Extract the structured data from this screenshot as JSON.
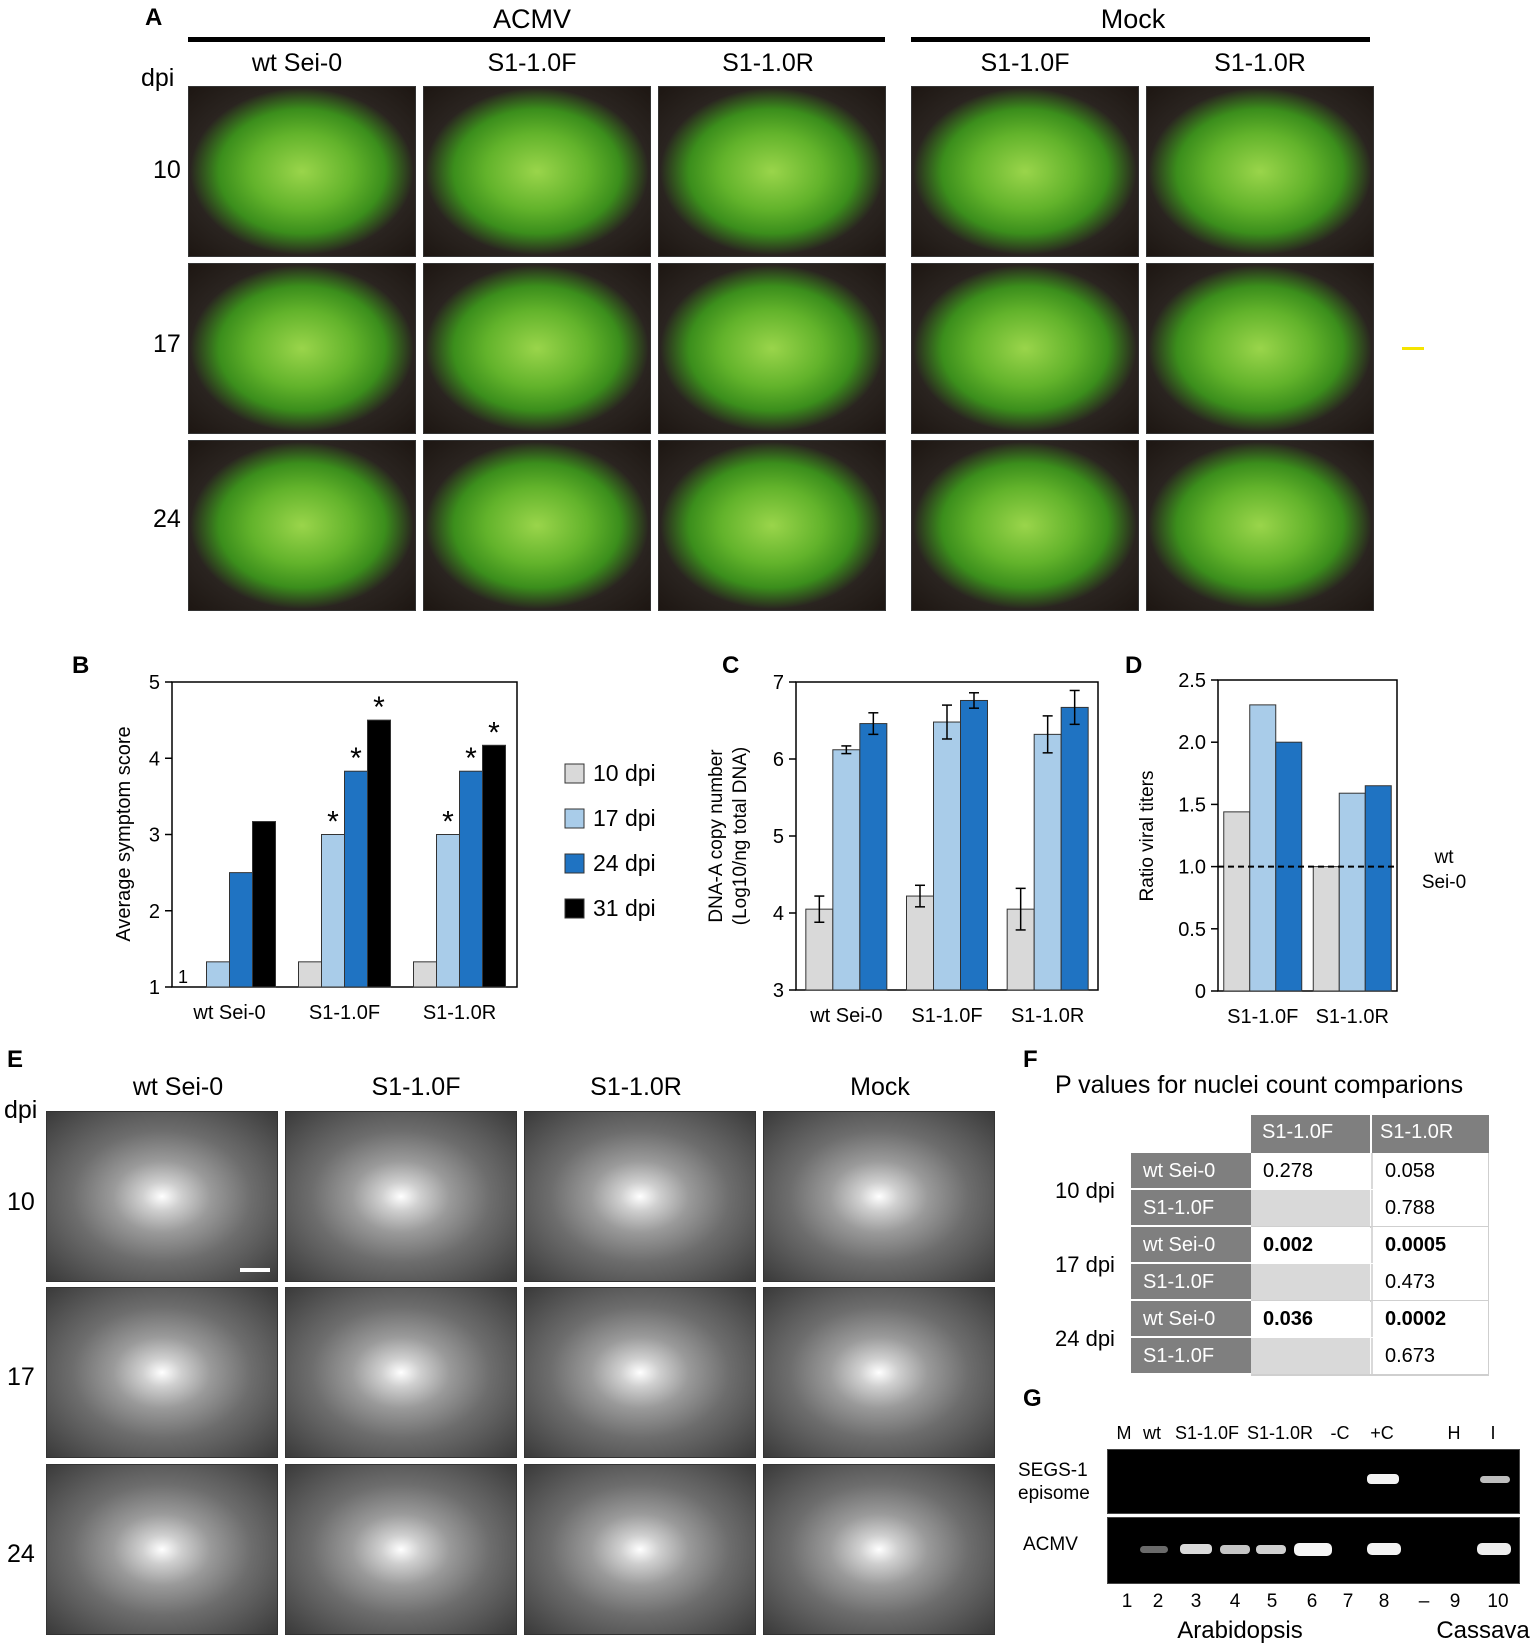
{
  "panels": {
    "A": "A",
    "B": "B",
    "C": "C",
    "D": "D",
    "E": "E",
    "F": "F",
    "G": "G"
  },
  "panel_a": {
    "group_acmv": "ACMV",
    "group_mock": "Mock",
    "columns": [
      "wt Sei-0",
      "S1-1.0F",
      "S1-1.0R",
      "S1-1.0F",
      "S1-1.0R"
    ],
    "dpi_label": "dpi",
    "rows": [
      "10",
      "17",
      "24"
    ]
  },
  "panel_e": {
    "columns": [
      "wt Sei-0",
      "S1-1.0F",
      "S1-1.0R",
      "Mock"
    ],
    "dpi_label": "dpi",
    "rows": [
      "10",
      "17",
      "24"
    ]
  },
  "panel_f": {
    "title": "P values for nuclei count comparions",
    "col_headers": [
      "S1-1.0F",
      "S1-1.0R"
    ],
    "groups": [
      {
        "dpi": "10 dpi",
        "rows": [
          {
            "label": "wt Sei-0",
            "f": "0.278",
            "r": "0.058",
            "f_bold": false,
            "r_bold": false
          },
          {
            "label": "S1-1.0F",
            "f": "",
            "r": "0.788",
            "f_bold": false,
            "r_bold": false
          }
        ]
      },
      {
        "dpi": "17 dpi",
        "rows": [
          {
            "label": "wt Sei-0",
            "f": "0.002",
            "r": "0.0005",
            "f_bold": true,
            "r_bold": true
          },
          {
            "label": "S1-1.0F",
            "f": "",
            "r": "0.473",
            "f_bold": false,
            "r_bold": false
          }
        ]
      },
      {
        "dpi": "24 dpi",
        "rows": [
          {
            "label": "wt Sei-0",
            "f": "0.036",
            "r": "0.0002",
            "f_bold": true,
            "r_bold": true
          },
          {
            "label": "S1-1.0F",
            "f": "",
            "r": "0.673",
            "f_bold": false,
            "r_bold": false
          }
        ]
      }
    ]
  },
  "panel_g": {
    "lane_headers": [
      "M",
      "wt",
      "S1-1.0F",
      "S1-1.0R",
      "-C",
      "+C",
      "H",
      "I"
    ],
    "row1_label_a": "SEGS-1",
    "row1_label_b": "episome",
    "row2_label": "ACMV",
    "lane_numbers": [
      "1",
      "2",
      "3",
      "4",
      "5",
      "6",
      "7",
      "8",
      "–",
      "9",
      "10"
    ],
    "species_left": "Arabidopsis",
    "species_right": "Cassava"
  },
  "chart_data": [
    {
      "id": "B",
      "type": "bar",
      "ylabel": "Average symptom score",
      "ylim": [
        1,
        5
      ],
      "yticks": [
        "1",
        "2",
        "3",
        "4",
        "5"
      ],
      "categories": [
        "wt Sei-0",
        "S1-1.0F",
        "S1-1.0R"
      ],
      "series": [
        {
          "name": "10 dpi",
          "color": "#d9d9d9",
          "values": [
            1,
            1.33,
            1.33
          ]
        },
        {
          "name": "17 dpi",
          "color": "#a9cce9",
          "values": [
            1.33,
            3,
            3
          ]
        },
        {
          "name": "24 dpi",
          "color": "#1f73c2",
          "values": [
            2.5,
            3.83,
            3.83
          ]
        },
        {
          "name": "31 dpi",
          "color": "#000000",
          "values": [
            3.17,
            4.5,
            4.17
          ]
        }
      ],
      "significance": [
        [
          false,
          false,
          false,
          false
        ],
        [
          false,
          true,
          true,
          true
        ],
        [
          false,
          true,
          true,
          true
        ]
      ],
      "sig_mark": "*",
      "annotation": "1",
      "legend_position": "right"
    },
    {
      "id": "C",
      "type": "bar",
      "ylabel_line1": "DNA-A copy number",
      "ylabel_line2": "(Log10/ng total DNA)",
      "ylim": [
        3,
        7
      ],
      "yticks": [
        "3",
        "4",
        "5",
        "6",
        "7"
      ],
      "categories": [
        "wt Sei-0",
        "S1-1.0F",
        "S1-1.0R"
      ],
      "series": [
        {
          "name": "10 dpi",
          "color": "#d9d9d9",
          "values": [
            4.05,
            4.22,
            4.05
          ],
          "errors": [
            0.17,
            0.14,
            0.27
          ]
        },
        {
          "name": "17 dpi",
          "color": "#a9cce9",
          "values": [
            6.12,
            6.48,
            6.32
          ],
          "errors": [
            0.05,
            0.22,
            0.24
          ]
        },
        {
          "name": "24 dpi",
          "color": "#1f73c2",
          "values": [
            6.46,
            6.76,
            6.67
          ],
          "errors": [
            0.14,
            0.1,
            0.22
          ]
        }
      ]
    },
    {
      "id": "D",
      "type": "bar",
      "ylabel": "Ratio viral titers",
      "ylim": [
        0,
        2.5
      ],
      "yticks": [
        "0",
        "0.5",
        "1.0",
        "1.5",
        "2.0",
        "2.5"
      ],
      "categories": [
        "S1-1.0F",
        "S1-1.0R"
      ],
      "series": [
        {
          "name": "10 dpi",
          "color": "#d9d9d9",
          "values": [
            1.44,
            1.0
          ]
        },
        {
          "name": "17 dpi",
          "color": "#a9cce9",
          "values": [
            2.3,
            1.59
          ]
        },
        {
          "name": "24 dpi",
          "color": "#1f73c2",
          "values": [
            2.0,
            1.65
          ]
        }
      ],
      "reference_line": 1.0,
      "reference_label_a": "wt",
      "reference_label_b": "Sei-0"
    }
  ]
}
